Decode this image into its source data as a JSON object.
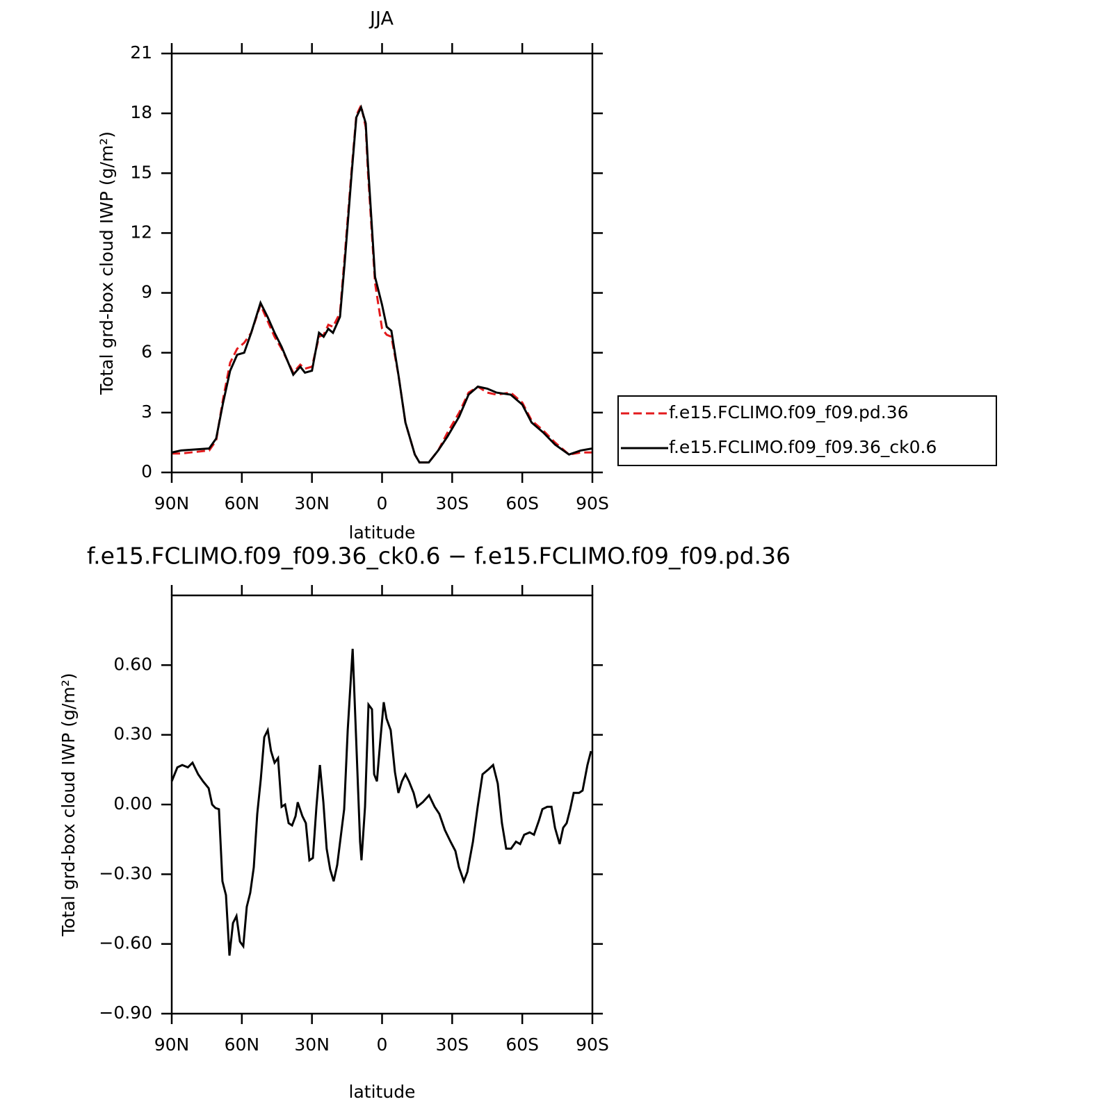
{
  "chart_data": [
    {
      "type": "line",
      "title": "JJA",
      "x_label": "latitude",
      "y_label": "Total grd-box cloud IWP (g/m²)",
      "xlim": [
        90,
        -90
      ],
      "xticks": [
        {
          "value": 90,
          "label": "90N"
        },
        {
          "value": 60,
          "label": "60N"
        },
        {
          "value": 30,
          "label": "30N"
        },
        0,
        {
          "value": -30,
          "label": "30S"
        },
        {
          "value": -60,
          "label": "60S"
        },
        {
          "value": -90,
          "label": "90S"
        }
      ],
      "ylim": [
        0,
        21
      ],
      "yticks": [
        0,
        3,
        6,
        9,
        12,
        15,
        18,
        21
      ],
      "legend": "outside-right",
      "x": [
        90,
        86,
        74,
        71,
        68,
        65,
        62,
        59,
        56,
        52,
        49,
        46,
        43,
        38,
        35,
        33,
        30,
        27,
        25,
        23,
        21,
        18,
        16,
        13,
        11,
        9,
        7,
        6,
        3,
        0,
        -2,
        -4,
        -7,
        -10,
        -14,
        -16,
        -20,
        -24,
        -28,
        -33,
        -37,
        -41,
        -45,
        -49,
        -55,
        -60,
        -64,
        -69,
        -74,
        -80,
        -85,
        -90
      ],
      "series": [
        {
          "name": "f.e15.FCLIMO.f09_f09.pd.36",
          "color": "#e31a1c",
          "line_style": "dashed",
          "values": [
            0.95,
            0.95,
            1.1,
            1.6,
            3.7,
            5.5,
            6.2,
            6.5,
            7.0,
            8.4,
            7.6,
            6.8,
            6.2,
            5.0,
            5.4,
            5.2,
            5.3,
            6.8,
            6.9,
            7.4,
            7.3,
            8.0,
            10.8,
            15.2,
            17.9,
            18.4,
            17.3,
            15.0,
            9.5,
            7.2,
            6.9,
            6.8,
            4.9,
            2.5,
            0.9,
            0.5,
            0.5,
            1.1,
            2.0,
            3.0,
            4.0,
            4.3,
            4.0,
            3.9,
            4.0,
            3.5,
            2.6,
            2.1,
            1.5,
            0.9,
            1.0,
            1.0
          ]
        },
        {
          "name": "f.e15.FCLIMO.f09_f09.36_ck0.6",
          "color": "#000000",
          "line_style": "solid",
          "values": [
            1.0,
            1.1,
            1.2,
            1.7,
            3.5,
            5.1,
            5.9,
            6.0,
            7.0,
            8.5,
            7.8,
            7.0,
            6.3,
            4.9,
            5.3,
            5.0,
            5.1,
            7.0,
            6.8,
            7.2,
            7.0,
            7.8,
            10.5,
            15.0,
            17.8,
            18.3,
            17.5,
            15.4,
            9.8,
            8.4,
            7.3,
            7.1,
            4.9,
            2.5,
            0.9,
            0.5,
            0.5,
            1.1,
            1.8,
            2.8,
            3.9,
            4.3,
            4.2,
            4.0,
            3.9,
            3.4,
            2.5,
            2.0,
            1.4,
            0.9,
            1.1,
            1.2
          ]
        }
      ]
    },
    {
      "type": "line",
      "title": "f.e15.FCLIMO.f09_f09.36_ck0.6 − f.e15.FCLIMO.f09_f09.pd.36",
      "x_label": "latitude",
      "y_label": "Total grd-box cloud IWP (g/m²)",
      "xlim": [
        90,
        -90
      ],
      "xticks": [
        {
          "value": 90,
          "label": "90N"
        },
        {
          "value": 60,
          "label": "60N"
        },
        {
          "value": 30,
          "label": "30N"
        },
        0,
        {
          "value": -30,
          "label": "30S"
        },
        {
          "value": -60,
          "label": "60S"
        },
        {
          "value": -90,
          "label": "90S"
        }
      ],
      "ylim": [
        -0.9,
        0.9
      ],
      "yticks": [
        {
          "value": -0.9,
          "label": "−0.90"
        },
        {
          "value": -0.6,
          "label": "−0.60"
        },
        {
          "value": -0.3,
          "label": "−0.30"
        },
        {
          "value": 0,
          "label": "0.00"
        },
        {
          "value": 0.3,
          "label": "0.30"
        },
        {
          "value": 0.6,
          "label": "0.60"
        }
      ],
      "x": [
        90,
        87.6,
        85.5,
        83.1,
        81.1,
        78.7,
        76.6,
        74.2,
        72.7,
        71.3,
        69.8,
        68.3,
        66.8,
        65.3,
        63.8,
        62.3,
        60.8,
        59.4,
        57.9,
        56.4,
        54.9,
        53.4,
        51.9,
        50.4,
        48.9,
        47.5,
        46.0,
        44.5,
        43.0,
        41.5,
        40.0,
        38.5,
        37.0,
        36.1,
        34.1,
        32.6,
        31.1,
        29.6,
        28.1,
        26.6,
        25.1,
        23.7,
        22.2,
        20.7,
        19.2,
        17.7,
        16.2,
        14.7,
        12.6,
        10.9,
        9.4,
        8.8,
        7.3,
        5.8,
        4.3,
        3.4,
        2.2,
        0.7,
        -0.7,
        -1.9,
        -3.7,
        -5.5,
        -7.0,
        -8.5,
        -10.0,
        -11.5,
        -13.5,
        -15.0,
        -17.4,
        -20.1,
        -22.5,
        -24.5,
        -26.9,
        -29.3,
        -31.4,
        -32.9,
        -35.0,
        -36.5,
        -38.9,
        -40.9,
        -43.0,
        -45.4,
        -47.5,
        -49.5,
        -51.3,
        -53.1,
        -55.2,
        -57.3,
        -59.1,
        -60.8,
        -63.2,
        -65.0,
        -67.1,
        -68.6,
        -70.7,
        -72.5,
        -74.0,
        -76.0,
        -77.5,
        -79.0,
        -80.5,
        -82.0,
        -84.3,
        -85.8,
        -87.9,
        -89.4
      ],
      "series": [
        {
          "color": "#000000",
          "line_style": "solid",
          "values": [
            0.1,
            0.16,
            0.17,
            0.16,
            0.18,
            0.13,
            0.1,
            0.07,
            0.0,
            -0.015,
            -0.02,
            -0.33,
            -0.39,
            -0.65,
            -0.51,
            -0.48,
            -0.59,
            -0.61,
            -0.44,
            -0.38,
            -0.27,
            -0.04,
            0.11,
            0.29,
            0.32,
            0.23,
            0.18,
            0.2,
            -0.01,
            0.0,
            -0.08,
            -0.09,
            -0.05,
            0.01,
            -0.05,
            -0.08,
            -0.24,
            -0.23,
            -0.01,
            0.17,
            0.01,
            -0.19,
            -0.28,
            -0.33,
            -0.26,
            -0.14,
            -0.02,
            0.32,
            0.67,
            0.23,
            -0.16,
            -0.24,
            -0.01,
            0.43,
            0.41,
            0.13,
            0.1,
            0.28,
            0.44,
            0.37,
            0.32,
            0.14,
            0.05,
            0.1,
            0.13,
            0.1,
            0.05,
            -0.01,
            0.01,
            0.04,
            -0.01,
            -0.04,
            -0.11,
            -0.16,
            -0.2,
            -0.27,
            -0.33,
            -0.29,
            -0.16,
            -0.01,
            0.13,
            0.15,
            0.17,
            0.09,
            -0.08,
            -0.19,
            -0.19,
            -0.16,
            -0.17,
            -0.13,
            -0.12,
            -0.13,
            -0.07,
            -0.02,
            -0.01,
            -0.01,
            -0.1,
            -0.17,
            -0.1,
            -0.08,
            -0.02,
            0.05,
            0.05,
            0.06,
            0.17,
            0.23
          ]
        }
      ]
    }
  ]
}
